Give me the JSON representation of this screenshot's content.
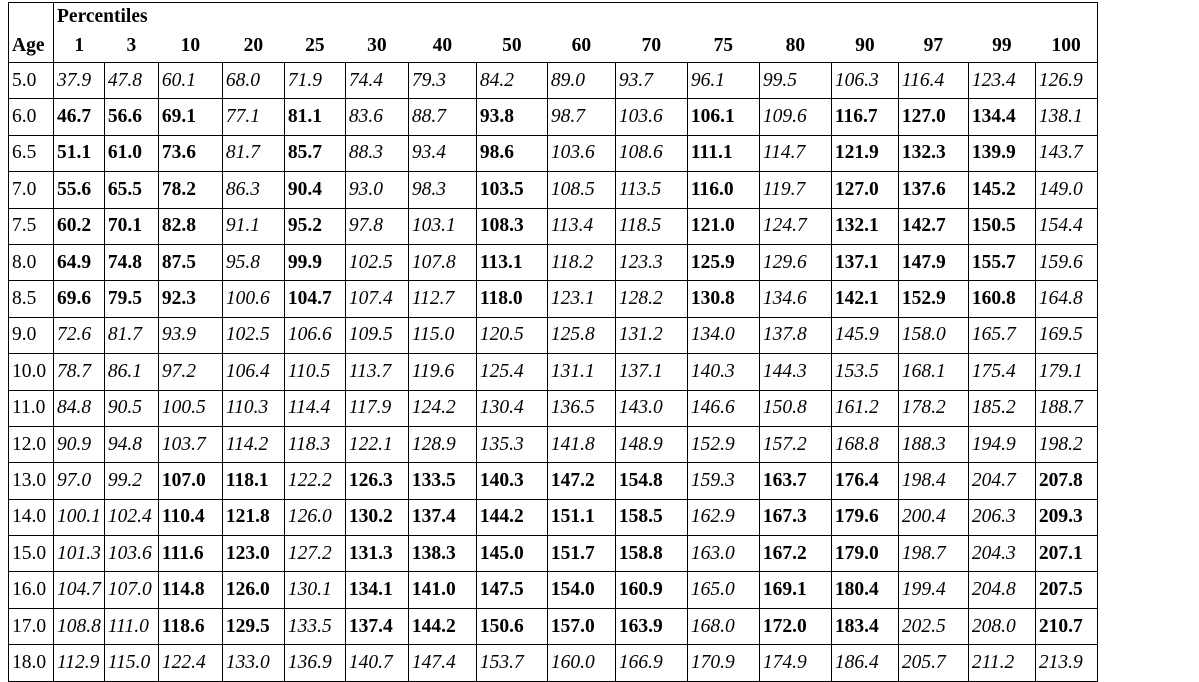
{
  "header": {
    "group_label": "Percentiles",
    "age_label": "Age",
    "columns": [
      "1",
      "3",
      "10",
      "20",
      "25",
      "30",
      "40",
      "50",
      "60",
      "70",
      "75",
      "80",
      "90",
      "97",
      "99",
      "100"
    ]
  },
  "rows": [
    {
      "age": "5.0",
      "values": [
        "37.9",
        "47.8",
        "60.1",
        "68.0",
        "71.9",
        "74.4",
        "79.3",
        "84.2",
        "89.0",
        "93.7",
        "96.1",
        "99.5",
        "106.3",
        "116.4",
        "123.4",
        "126.9"
      ],
      "styles": [
        "i",
        "i",
        "i",
        "i",
        "i",
        "i",
        "i",
        "i",
        "i",
        "i",
        "i",
        "i",
        "i",
        "i",
        "i",
        "i"
      ]
    },
    {
      "age": "6.0",
      "values": [
        "46.7",
        "56.6",
        "69.1",
        "77.1",
        "81.1",
        "83.6",
        "88.7",
        "93.8",
        "98.7",
        "103.6",
        "106.1",
        "109.6",
        "116.7",
        "127.0",
        "134.4",
        "138.1"
      ],
      "styles": [
        "b",
        "b",
        "b",
        "i",
        "b",
        "i",
        "i",
        "b",
        "i",
        "i",
        "b",
        "i",
        "b",
        "b",
        "b",
        "i"
      ]
    },
    {
      "age": "6.5",
      "values": [
        "51.1",
        "61.0",
        "73.6",
        "81.7",
        "85.7",
        "88.3",
        "93.4",
        "98.6",
        "103.6",
        "108.6",
        "111.1",
        "114.7",
        "121.9",
        "132.3",
        "139.9",
        "143.7"
      ],
      "styles": [
        "b",
        "b",
        "b",
        "i",
        "b",
        "i",
        "i",
        "b",
        "i",
        "i",
        "b",
        "i",
        "b",
        "b",
        "b",
        "i"
      ]
    },
    {
      "age": "7.0",
      "values": [
        "55.6",
        "65.5",
        "78.2",
        "86.3",
        "90.4",
        "93.0",
        "98.3",
        "103.5",
        "108.5",
        "113.5",
        "116.0",
        "119.7",
        "127.0",
        "137.6",
        "145.2",
        "149.0"
      ],
      "styles": [
        "b",
        "b",
        "b",
        "i",
        "b",
        "i",
        "i",
        "b",
        "i",
        "i",
        "b",
        "i",
        "b",
        "b",
        "b",
        "i"
      ]
    },
    {
      "age": "7.5",
      "values": [
        "60.2",
        "70.1",
        "82.8",
        "91.1",
        "95.2",
        "97.8",
        "103.1",
        "108.3",
        "113.4",
        "118.5",
        "121.0",
        "124.7",
        "132.1",
        "142.7",
        "150.5",
        "154.4"
      ],
      "styles": [
        "b",
        "b",
        "b",
        "i",
        "b",
        "i",
        "i",
        "b",
        "i",
        "i",
        "b",
        "i",
        "b",
        "b",
        "b",
        "i"
      ]
    },
    {
      "age": "8.0",
      "values": [
        "64.9",
        "74.8",
        "87.5",
        "95.8",
        "99.9",
        "102.5",
        "107.8",
        "113.1",
        "118.2",
        "123.3",
        "125.9",
        "129.6",
        "137.1",
        "147.9",
        "155.7",
        "159.6"
      ],
      "styles": [
        "b",
        "b",
        "b",
        "i",
        "b",
        "i",
        "i",
        "b",
        "i",
        "i",
        "b",
        "i",
        "b",
        "b",
        "b",
        "i"
      ]
    },
    {
      "age": "8.5",
      "values": [
        "69.6",
        "79.5",
        "92.3",
        "100.6",
        "104.7",
        "107.4",
        "112.7",
        "118.0",
        "123.1",
        "128.2",
        "130.8",
        "134.6",
        "142.1",
        "152.9",
        "160.8",
        "164.8"
      ],
      "styles": [
        "b",
        "b",
        "b",
        "i",
        "b",
        "i",
        "i",
        "b",
        "i",
        "i",
        "b",
        "i",
        "b",
        "b",
        "b",
        "i"
      ]
    },
    {
      "age": "9.0",
      "values": [
        "72.6",
        "81.7",
        "93.9",
        "102.5",
        "106.6",
        "109.5",
        "115.0",
        "120.5",
        "125.8",
        "131.2",
        "134.0",
        "137.8",
        "145.9",
        "158.0",
        "165.7",
        "169.5"
      ],
      "styles": [
        "i",
        "i",
        "i",
        "i",
        "i",
        "i",
        "i",
        "i",
        "i",
        "i",
        "i",
        "i",
        "i",
        "i",
        "i",
        "i"
      ]
    },
    {
      "age": "10.0",
      "values": [
        "78.7",
        "86.1",
        "97.2",
        "106.4",
        "110.5",
        "113.7",
        "119.6",
        "125.4",
        "131.1",
        "137.1",
        "140.3",
        "144.3",
        "153.5",
        "168.1",
        "175.4",
        "179.1"
      ],
      "styles": [
        "i",
        "i",
        "i",
        "i",
        "i",
        "i",
        "i",
        "i",
        "i",
        "i",
        "i",
        "i",
        "i",
        "i",
        "i",
        "i"
      ]
    },
    {
      "age": "11.0",
      "values": [
        "84.8",
        "90.5",
        "100.5",
        "110.3",
        "114.4",
        "117.9",
        "124.2",
        "130.4",
        "136.5",
        "143.0",
        "146.6",
        "150.8",
        "161.2",
        "178.2",
        "185.2",
        "188.7"
      ],
      "styles": [
        "i",
        "i",
        "i",
        "i",
        "i",
        "i",
        "i",
        "i",
        "i",
        "i",
        "i",
        "i",
        "i",
        "i",
        "i",
        "i"
      ]
    },
    {
      "age": "12.0",
      "values": [
        "90.9",
        "94.8",
        "103.7",
        "114.2",
        "118.3",
        "122.1",
        "128.9",
        "135.3",
        "141.8",
        "148.9",
        "152.9",
        "157.2",
        "168.8",
        "188.3",
        "194.9",
        "198.2"
      ],
      "styles": [
        "i",
        "i",
        "i",
        "i",
        "i",
        "i",
        "i",
        "i",
        "i",
        "i",
        "i",
        "i",
        "i",
        "i",
        "i",
        "i"
      ]
    },
    {
      "age": "13.0",
      "values": [
        "97.0",
        "99.2",
        "107.0",
        "118.1",
        "122.2",
        "126.3",
        "133.5",
        "140.3",
        "147.2",
        "154.8",
        "159.3",
        "163.7",
        "176.4",
        "198.4",
        "204.7",
        "207.8"
      ],
      "styles": [
        "i",
        "i",
        "b",
        "b",
        "i",
        "b",
        "b",
        "b",
        "b",
        "b",
        "i",
        "b",
        "b",
        "i",
        "i",
        "b"
      ]
    },
    {
      "age": "14.0",
      "values": [
        "100.1",
        "102.4",
        "110.4",
        "121.8",
        "126.0",
        "130.2",
        "137.4",
        "144.2",
        "151.1",
        "158.5",
        "162.9",
        "167.3",
        "179.6",
        "200.4",
        "206.3",
        "209.3"
      ],
      "styles": [
        "i",
        "i",
        "b",
        "b",
        "i",
        "b",
        "b",
        "b",
        "b",
        "b",
        "i",
        "b",
        "b",
        "i",
        "i",
        "b"
      ]
    },
    {
      "age": "15.0",
      "values": [
        "101.3",
        "103.6",
        "111.6",
        "123.0",
        "127.2",
        "131.3",
        "138.3",
        "145.0",
        "151.7",
        "158.8",
        "163.0",
        "167.2",
        "179.0",
        "198.7",
        "204.3",
        "207.1"
      ],
      "styles": [
        "i",
        "i",
        "b",
        "b",
        "i",
        "b",
        "b",
        "b",
        "b",
        "b",
        "i",
        "b",
        "b",
        "i",
        "i",
        "b"
      ]
    },
    {
      "age": "16.0",
      "values": [
        "104.7",
        "107.0",
        "114.8",
        "126.0",
        "130.1",
        "134.1",
        "141.0",
        "147.5",
        "154.0",
        "160.9",
        "165.0",
        "169.1",
        "180.4",
        "199.4",
        "204.8",
        "207.5"
      ],
      "styles": [
        "i",
        "i",
        "b",
        "b",
        "i",
        "b",
        "b",
        "b",
        "b",
        "b",
        "i",
        "b",
        "b",
        "i",
        "i",
        "b"
      ]
    },
    {
      "age": "17.0",
      "values": [
        "108.8",
        "111.0",
        "118.6",
        "129.5",
        "133.5",
        "137.4",
        "144.2",
        "150.6",
        "157.0",
        "163.9",
        "168.0",
        "172.0",
        "183.4",
        "202.5",
        "208.0",
        "210.7"
      ],
      "styles": [
        "i",
        "i",
        "b",
        "b",
        "i",
        "b",
        "b",
        "b",
        "b",
        "b",
        "i",
        "b",
        "b",
        "i",
        "i",
        "b"
      ]
    },
    {
      "age": "18.0",
      "values": [
        "112.9",
        "115.0",
        "122.4",
        "133.0",
        "136.9",
        "140.7",
        "147.4",
        "153.7",
        "160.0",
        "166.9",
        "170.9",
        "174.9",
        "186.4",
        "205.7",
        "211.2",
        "213.9"
      ],
      "styles": [
        "i",
        "i",
        "i",
        "i",
        "i",
        "i",
        "i",
        "i",
        "i",
        "i",
        "i",
        "i",
        "i",
        "i",
        "i",
        "i"
      ]
    }
  ]
}
